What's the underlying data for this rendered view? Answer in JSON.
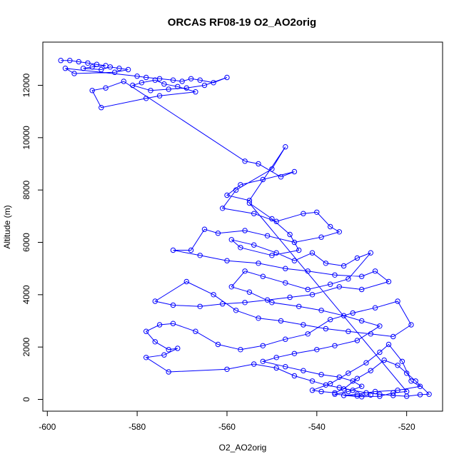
{
  "chart_data": {
    "type": "scatter",
    "title": "ORCAS RF08-19 O2_AO2orig",
    "xlabel": "O2_AO2orig",
    "ylabel": "Altitude (m)",
    "xlim": [
      -601,
      -512
    ],
    "ylim": [
      -450,
      13650
    ],
    "xticks": [
      -600,
      -580,
      -560,
      -540,
      -520
    ],
    "yticks": [
      0,
      2000,
      4000,
      6000,
      8000,
      10000,
      12000
    ],
    "grid": false,
    "legend": "none",
    "marker": "open-circle",
    "connect_points": true,
    "color": "#0000ff",
    "series": [
      {
        "points": [
          [
            -597,
            12950
          ],
          [
            -595,
            12950
          ],
          [
            -593,
            12900
          ],
          [
            -591,
            12850
          ],
          [
            -589,
            12800
          ],
          [
            -587,
            12750
          ],
          [
            -590,
            12700
          ],
          [
            -592,
            12650
          ],
          [
            -588,
            12600
          ],
          [
            -586,
            12700
          ],
          [
            -584,
            12650
          ],
          [
            -582,
            12600
          ],
          [
            -585,
            12500
          ],
          [
            -594,
            12450
          ],
          [
            -596,
            12650
          ],
          [
            -580,
            12350
          ],
          [
            -578,
            12300
          ],
          [
            -575,
            12250
          ],
          [
            -572,
            12200
          ],
          [
            -570,
            12150
          ],
          [
            -568,
            12250
          ],
          [
            -566,
            12200
          ],
          [
            -563,
            12100
          ],
          [
            -560,
            12300
          ],
          [
            -565,
            12000
          ],
          [
            -569,
            11900
          ],
          [
            -573,
            11850
          ],
          [
            -577,
            11800
          ],
          [
            -581,
            12000
          ],
          [
            -579,
            12100
          ],
          [
            -576,
            12200
          ],
          [
            -574,
            12050
          ],
          [
            -571,
            11950
          ],
          [
            -567,
            11750
          ],
          [
            -575,
            11600
          ],
          [
            -578,
            11500
          ],
          [
            -588,
            11150
          ],
          [
            -590,
            11800
          ],
          [
            -587,
            11900
          ],
          [
            -583,
            12150
          ],
          [
            -556,
            9100
          ],
          [
            -553,
            9000
          ],
          [
            -548,
            8500
          ],
          [
            -545,
            8700
          ],
          [
            -552,
            8400
          ],
          [
            -557,
            8200
          ],
          [
            -560,
            7800
          ],
          [
            -555,
            7600
          ],
          [
            -547,
            9650
          ],
          [
            -550,
            8800
          ],
          [
            -558,
            8000
          ],
          [
            -561,
            7300
          ],
          [
            -554,
            7100
          ],
          [
            -549,
            6800
          ],
          [
            -543,
            7100
          ],
          [
            -540,
            7150
          ],
          [
            -537,
            6600
          ],
          [
            -535,
            6400
          ],
          [
            -539,
            6200
          ],
          [
            -545,
            6000
          ],
          [
            -551,
            6250
          ],
          [
            -556,
            6450
          ],
          [
            -562,
            6350
          ],
          [
            -565,
            6500
          ],
          [
            -568,
            5700
          ],
          [
            -572,
            5700
          ],
          [
            -566,
            5500
          ],
          [
            -560,
            5300
          ],
          [
            -553,
            5200
          ],
          [
            -547,
            5000
          ],
          [
            -542,
            4900
          ],
          [
            -536,
            4750
          ],
          [
            -530,
            4700
          ],
          [
            -527,
            4900
          ],
          [
            -524,
            4500
          ],
          [
            -530,
            4200
          ],
          [
            -535,
            4300
          ],
          [
            -541,
            4000
          ],
          [
            -546,
            3900
          ],
          [
            -551,
            3800
          ],
          [
            -556,
            3700
          ],
          [
            -561,
            3650
          ],
          [
            -566,
            3550
          ],
          [
            -572,
            3600
          ],
          [
            -576,
            3750
          ],
          [
            -569,
            4500
          ],
          [
            -563,
            4000
          ],
          [
            -558,
            3400
          ],
          [
            -553,
            3100
          ],
          [
            -548,
            3000
          ],
          [
            -543,
            2850
          ],
          [
            -538,
            2700
          ],
          [
            -533,
            2600
          ],
          [
            -528,
            2500
          ],
          [
            -523,
            2400
          ],
          [
            -519,
            2850
          ],
          [
            -522,
            3750
          ],
          [
            -527,
            3500
          ],
          [
            -532,
            3300
          ],
          [
            -537,
            3050
          ],
          [
            -542,
            2500
          ],
          [
            -547,
            2300
          ],
          [
            -552,
            2050
          ],
          [
            -557,
            1900
          ],
          [
            -562,
            2100
          ],
          [
            -567,
            2600
          ],
          [
            -572,
            2900
          ],
          [
            -575,
            2850
          ],
          [
            -578,
            2600
          ],
          [
            -576,
            2200
          ],
          [
            -573,
            1900
          ],
          [
            -571,
            1950
          ],
          [
            -574,
            1700
          ],
          [
            -578,
            1600
          ],
          [
            -573,
            1050
          ],
          [
            -560,
            1150
          ],
          [
            -554,
            1350
          ],
          [
            -549,
            1200
          ],
          [
            -545,
            900
          ],
          [
            -541,
            700
          ],
          [
            -538,
            550
          ],
          [
            -535,
            450
          ],
          [
            -532,
            350
          ],
          [
            -529,
            250
          ],
          [
            -526,
            200
          ],
          [
            -523,
            150
          ],
          [
            -520,
            120
          ],
          [
            -517,
            180
          ],
          [
            -515,
            200
          ],
          [
            -518,
            700
          ],
          [
            -520,
            1000
          ],
          [
            -522,
            1300
          ],
          [
            -525,
            1500
          ],
          [
            -528,
            1100
          ],
          [
            -531,
            800
          ],
          [
            -534,
            400
          ],
          [
            -536,
            250
          ],
          [
            -539,
            300
          ],
          [
            -541,
            350
          ],
          [
            -537,
            600
          ],
          [
            -533,
            1000
          ],
          [
            -529,
            1400
          ],
          [
            -526,
            1800
          ],
          [
            -524,
            2100
          ],
          [
            -521,
            1450
          ],
          [
            -519,
            700
          ],
          [
            -517,
            500
          ],
          [
            -522,
            350
          ],
          [
            -527,
            300
          ],
          [
            -531,
            200
          ],
          [
            -534,
            150
          ],
          [
            -530,
            100
          ],
          [
            -526,
            120
          ],
          [
            -523,
            250
          ],
          [
            -520,
            300
          ],
          [
            -555,
            7500
          ],
          [
            -550,
            6900
          ],
          [
            -546,
            6300
          ],
          [
            -544,
            5700
          ],
          [
            -550,
            5500
          ],
          [
            -557,
            5800
          ],
          [
            -559,
            6100
          ],
          [
            -554,
            5900
          ],
          [
            -549,
            5600
          ],
          [
            -545,
            5300
          ],
          [
            -541,
            5600
          ],
          [
            -538,
            5200
          ],
          [
            -534,
            5100
          ],
          [
            -531,
            5400
          ],
          [
            -528,
            5600
          ],
          [
            -533,
            4600
          ],
          [
            -537,
            4400
          ],
          [
            -542,
            4200
          ],
          [
            -547,
            4450
          ],
          [
            -552,
            4700
          ],
          [
            -556,
            4900
          ],
          [
            -559,
            4300
          ],
          [
            -555,
            4100
          ],
          [
            -550,
            3700
          ],
          [
            -544,
            3550
          ],
          [
            -539,
            3400
          ],
          [
            -534,
            3200
          ],
          [
            -530,
            3000
          ],
          [
            -526,
            2800
          ],
          [
            -531,
            2250
          ],
          [
            -536,
            2050
          ],
          [
            -540,
            1900
          ],
          [
            -545,
            1750
          ],
          [
            -549,
            1600
          ],
          [
            -552,
            1450
          ],
          [
            -547,
            1250
          ],
          [
            -543,
            1100
          ],
          [
            -539,
            950
          ],
          [
            -535,
            850
          ],
          [
            -532,
            700
          ],
          [
            -530,
            500
          ],
          [
            -533,
            300
          ],
          [
            -536,
            200
          ],
          [
            -531,
            130
          ],
          [
            -528,
            170
          ]
        ]
      }
    ]
  }
}
